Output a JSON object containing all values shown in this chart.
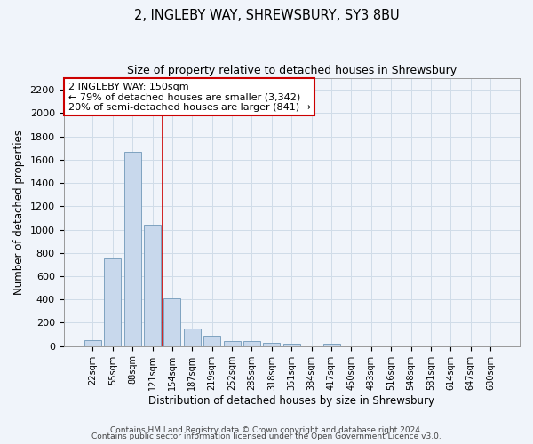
{
  "title": "2, INGLEBY WAY, SHREWSBURY, SY3 8BU",
  "subtitle": "Size of property relative to detached houses in Shrewsbury",
  "xlabel": "Distribution of detached houses by size in Shrewsbury",
  "ylabel": "Number of detached properties",
  "bar_color": "#c8d8ec",
  "bar_edge_color": "#7098b8",
  "background_color": "#f0f4fa",
  "plot_bg_color": "#f0f4fa",
  "grid_color": "#d0dce8",
  "vline_color": "#cc0000",
  "annotation_title": "2 INGLEBY WAY: 150sqm",
  "annotation_line1": "← 79% of detached houses are smaller (3,342)",
  "annotation_line2": "20% of semi-detached houses are larger (841) →",
  "footer1": "Contains HM Land Registry data © Crown copyright and database right 2024.",
  "footer2": "Contains public sector information licensed under the Open Government Licence v3.0.",
  "bin_labels": [
    "22sqm",
    "55sqm",
    "88sqm",
    "121sqm",
    "154sqm",
    "187sqm",
    "219sqm",
    "252sqm",
    "285sqm",
    "318sqm",
    "351sqm",
    "384sqm",
    "417sqm",
    "450sqm",
    "483sqm",
    "516sqm",
    "548sqm",
    "581sqm",
    "614sqm",
    "647sqm",
    "680sqm"
  ],
  "bin_values": [
    55,
    750,
    1670,
    1040,
    410,
    150,
    90,
    45,
    40,
    28,
    20,
    0,
    20,
    0,
    0,
    0,
    0,
    0,
    0,
    0,
    0
  ],
  "ylim": [
    0,
    2300
  ],
  "yticks": [
    0,
    200,
    400,
    600,
    800,
    1000,
    1200,
    1400,
    1600,
    1800,
    2000,
    2200
  ],
  "vline_idx": 3.5
}
